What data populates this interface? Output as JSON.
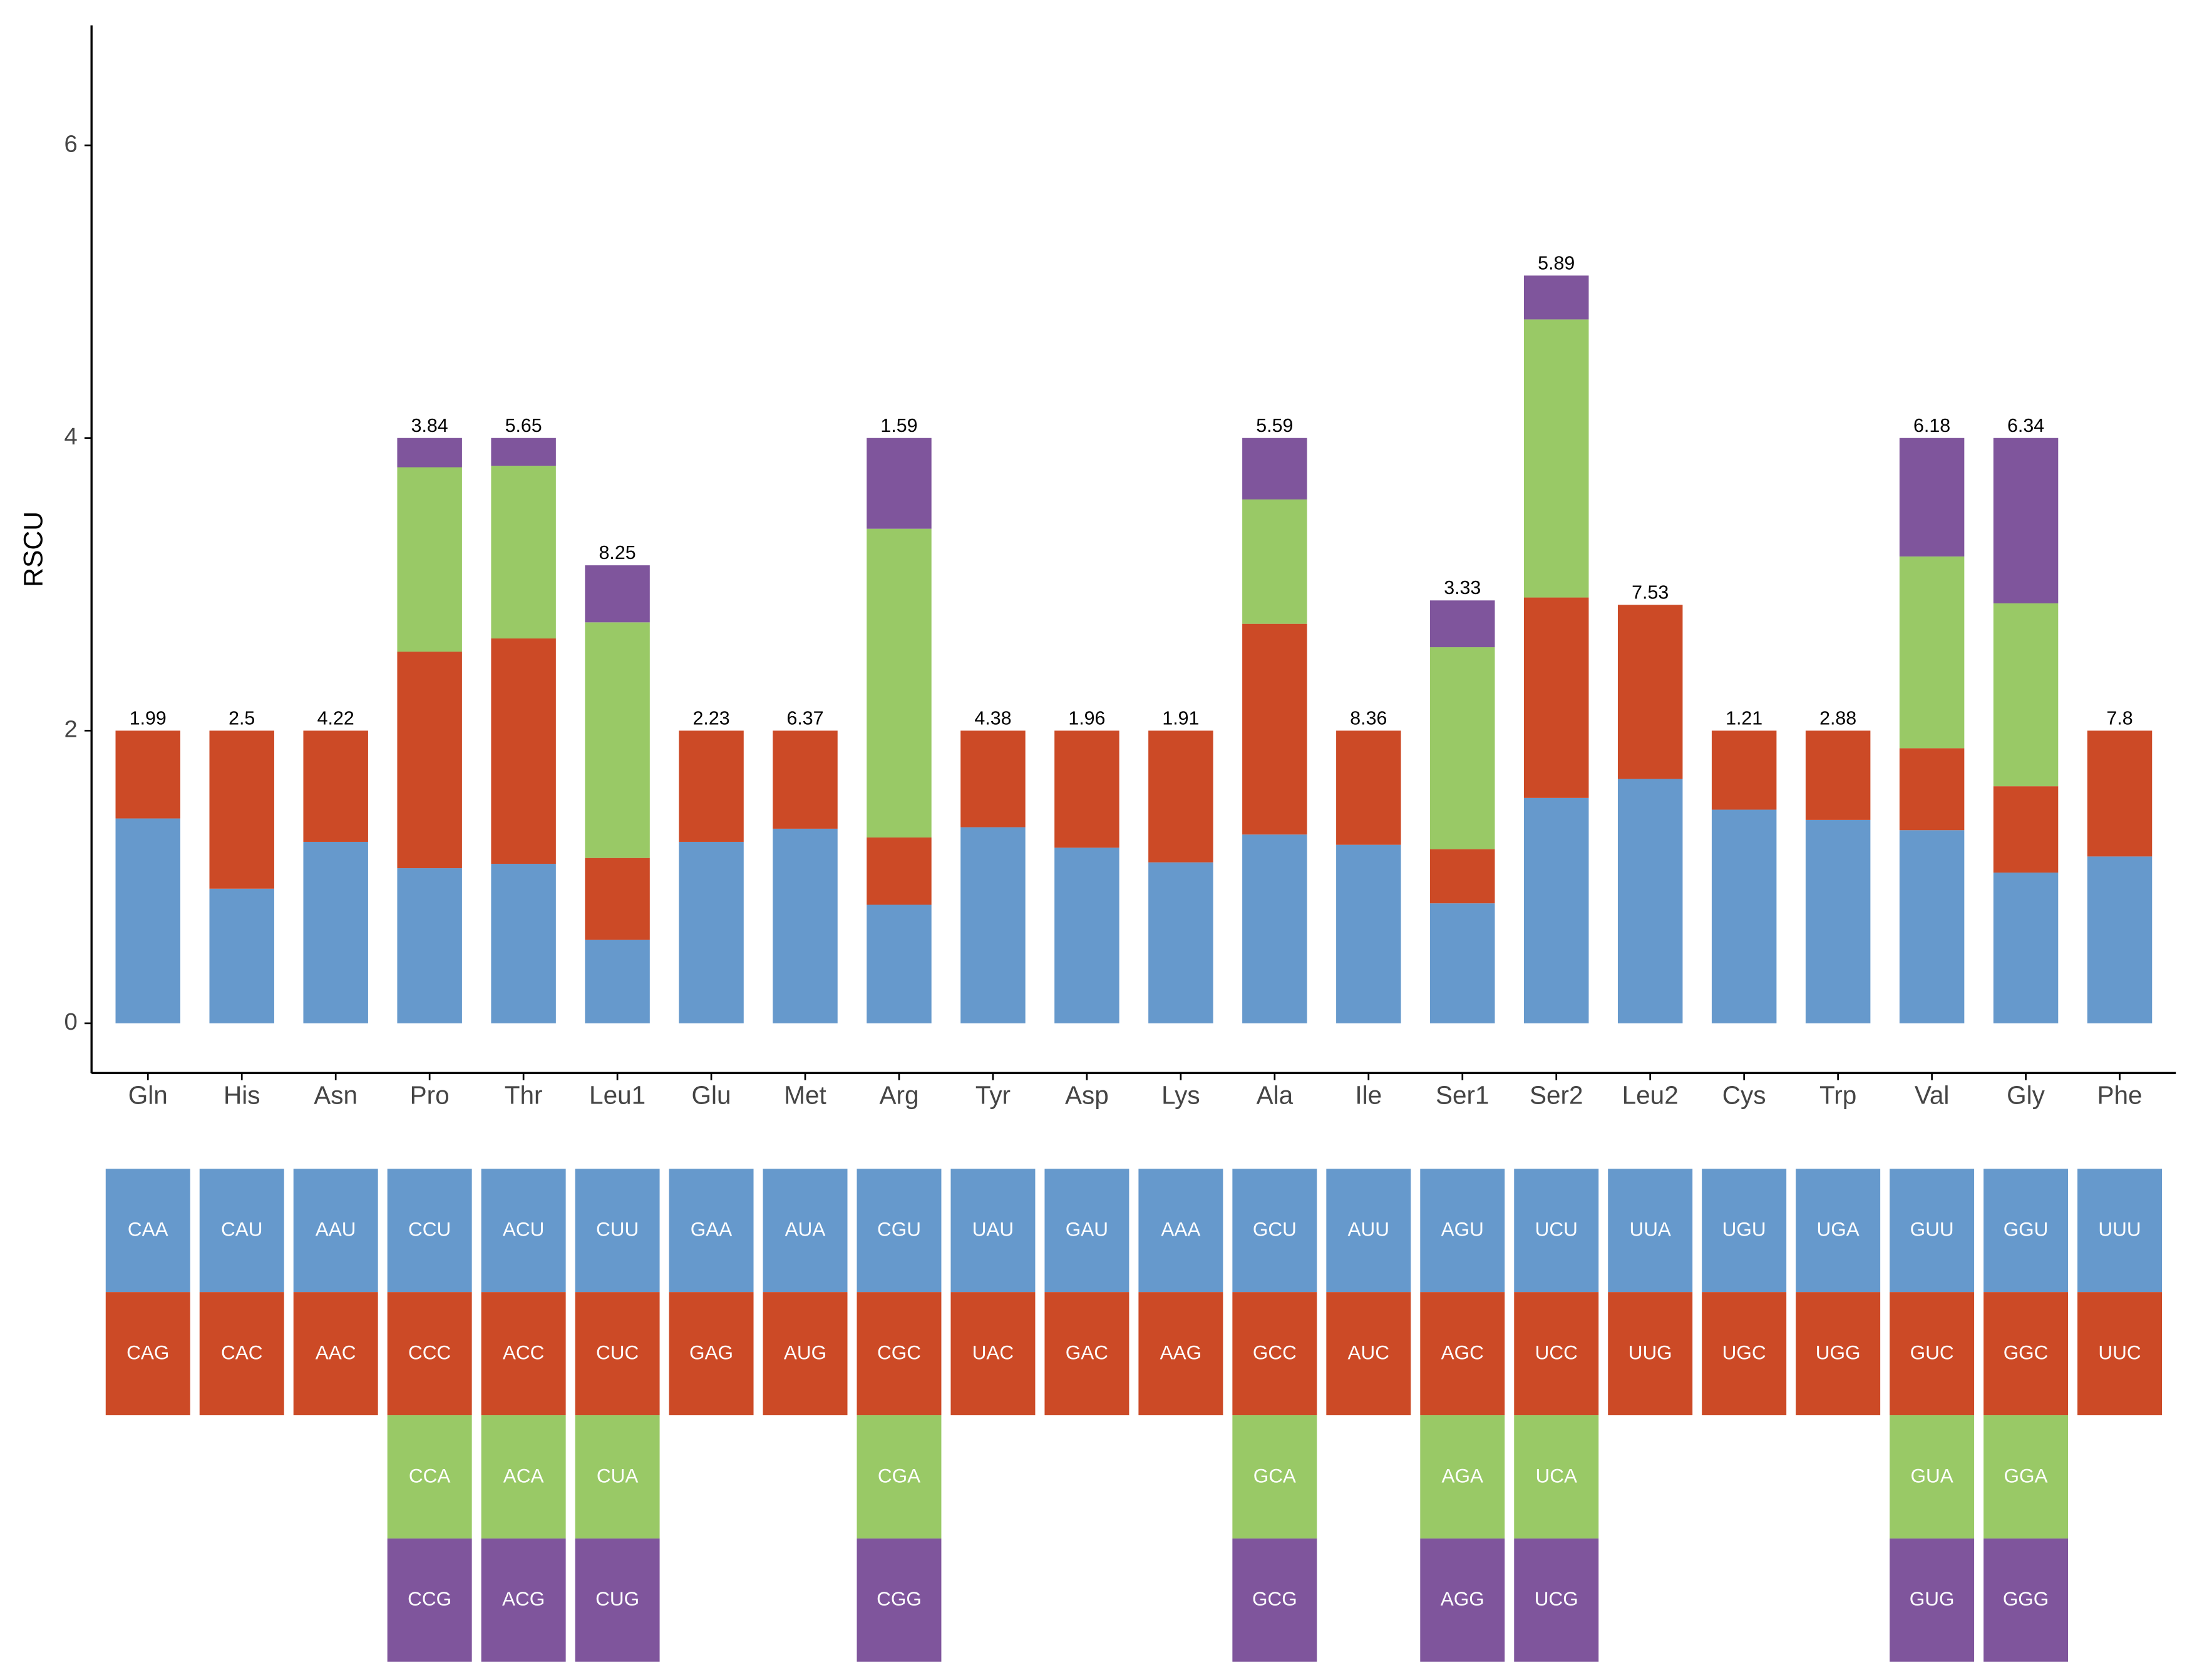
{
  "chart_data": {
    "type": "stacked_bar",
    "y_label": "RSCU",
    "categories": [
      "Gln",
      "His",
      "Asn",
      "Pro",
      "Thr",
      "Leu1",
      "Glu",
      "Met",
      "Arg",
      "Tyr",
      "Asp",
      "Lys",
      "Ala",
      "Ile",
      "Ser1",
      "Ser2",
      "Leu2",
      "Cys",
      "Trp",
      "Val",
      "Gly",
      "Phe"
    ],
    "top_labels": [
      1.99,
      2.5,
      4.22,
      3.84,
      5.65,
      8.25,
      2.23,
      6.37,
      1.59,
      4.38,
      1.96,
      1.91,
      5.59,
      8.36,
      3.33,
      5.89,
      7.53,
      1.21,
      2.88,
      6.18,
      6.34,
      7.8
    ],
    "series": [
      {
        "color": "#6699cc",
        "values": [
          1.4,
          0.92,
          1.24,
          1.06,
          1.09,
          0.57,
          1.24,
          1.33,
          0.81,
          1.34,
          1.2,
          1.1,
          1.29,
          1.22,
          0.82,
          1.54,
          1.67,
          1.46,
          1.39,
          1.32,
          1.03,
          1.14
        ],
        "codons": [
          "CAA",
          "CAU",
          "AAU",
          "CCU",
          "ACU",
          "CUU",
          "GAA",
          "AUA",
          "CGU",
          "UAU",
          "GAU",
          "AAA",
          "GCU",
          "AUU",
          "AGU",
          "UCU",
          "UUA",
          "UGU",
          "UGA",
          "GUU",
          "GGU",
          "UUU"
        ]
      },
      {
        "color": "#cc4a26",
        "values": [
          0.6,
          1.08,
          0.76,
          1.48,
          1.54,
          0.56,
          0.76,
          0.67,
          0.46,
          0.66,
          0.8,
          0.9,
          1.44,
          0.78,
          0.37,
          1.37,
          1.19,
          0.54,
          0.61,
          0.56,
          0.59,
          0.86
        ],
        "codons": [
          "CAG",
          "CAC",
          "AAC",
          "CCC",
          "ACC",
          "CUC",
          "GAG",
          "AUG",
          "CGC",
          "UAC",
          "GAC",
          "AAG",
          "GCC",
          "AUC",
          "AGC",
          "UCC",
          "UUG",
          "UGC",
          "UGG",
          "GUC",
          "GGC",
          "UUC"
        ]
      },
      {
        "color": "#99c966",
        "values": [
          null,
          null,
          null,
          1.26,
          1.18,
          1.61,
          null,
          null,
          2.11,
          null,
          null,
          null,
          0.85,
          null,
          1.38,
          1.9,
          null,
          null,
          null,
          1.31,
          1.25,
          null
        ],
        "codons": [
          null,
          null,
          null,
          "CCA",
          "ACA",
          "CUA",
          null,
          null,
          "CGA",
          null,
          null,
          null,
          "GCA",
          null,
          "AGA",
          "UCA",
          null,
          null,
          null,
          "GUA",
          "GGA",
          null
        ]
      },
      {
        "color": "#7f559c",
        "values": [
          null,
          null,
          null,
          0.2,
          0.19,
          0.39,
          null,
          null,
          0.62,
          null,
          null,
          null,
          0.42,
          null,
          0.32,
          0.3,
          null,
          null,
          null,
          0.81,
          1.13,
          null
        ],
        "codons": [
          null,
          null,
          null,
          "CCG",
          "ACG",
          "CUG",
          null,
          null,
          "CGG",
          null,
          null,
          null,
          "GCG",
          null,
          "AGG",
          "UCG",
          null,
          null,
          null,
          "GUG",
          "GGG",
          null
        ]
      }
    ],
    "ylim": [
      -0.34,
      6.82
    ],
    "yticks": [
      0,
      2,
      4,
      6
    ],
    "grid": false
  }
}
